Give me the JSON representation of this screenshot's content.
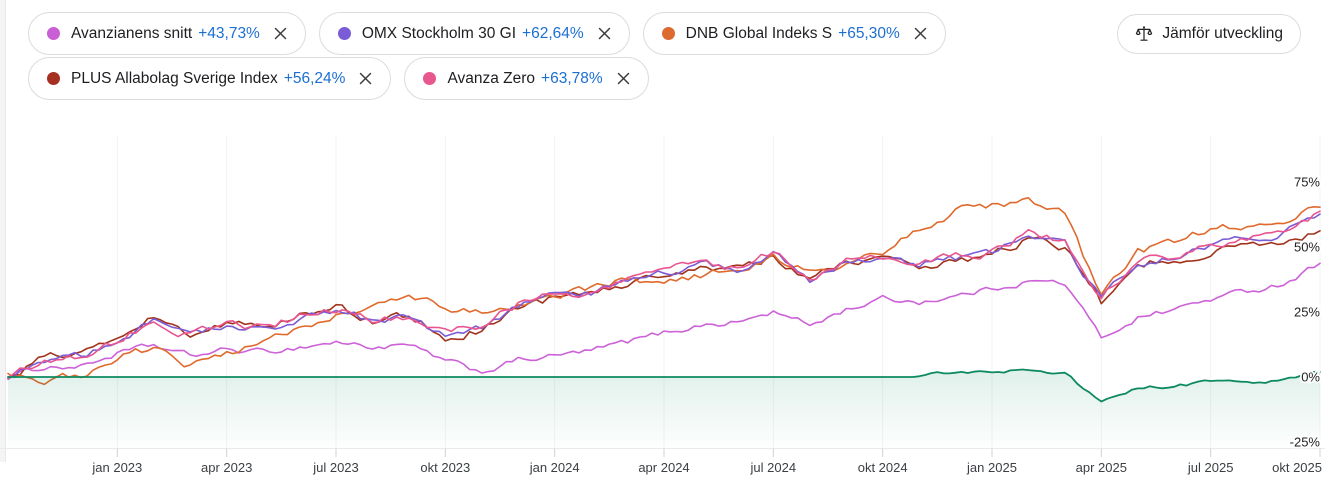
{
  "chips": [
    {
      "label": "Avanzianens snitt",
      "value": "+43,73%",
      "color": "#c95fd4",
      "row": 1
    },
    {
      "label": "OMX Stockholm 30 GI",
      "value": "+62,64%",
      "color": "#7a5cd6",
      "row": 1
    },
    {
      "label": "DNB Global Indeks S",
      "value": "+65,30%",
      "color": "#dd6a2e",
      "row": 1
    },
    {
      "label": "PLUS Allabolag Sverige Index",
      "value": "+56,24%",
      "color": "#a53022",
      "row": 2
    },
    {
      "label": "Avanza Zero",
      "value": "+63,78%",
      "color": "#e8578d",
      "row": 2
    }
  ],
  "compare_button": {
    "label": "Jämför utveckling",
    "icon": "balance-scale-icon"
  },
  "colors": {
    "accent_blue": "#1b6fd2",
    "axis_label": "#3c4043",
    "y_label": "#1f1f1f",
    "main_green": "#0d8a60"
  },
  "chart_data": {
    "type": "line",
    "title": "",
    "x_unit": "month",
    "x_start": "okt 2022",
    "x_end": "okt 2025",
    "x_labels": [
      "jan 2023",
      "apr 2023",
      "jul 2023",
      "okt 2023",
      "jan 2024",
      "apr 2024",
      "jul 2024",
      "okt 2024",
      "jan 2025",
      "apr 2025",
      "jul 2025",
      "okt 2025"
    ],
    "x_label_months": [
      3,
      6,
      9,
      12,
      15,
      18,
      21,
      24,
      27,
      30,
      33,
      36
    ],
    "y_ticks": [
      "75%",
      "50%",
      "25%",
      "0%",
      "-25%"
    ],
    "y_tick_values": [
      75,
      50,
      25,
      0,
      -25
    ],
    "y_range": [
      -30,
      80
    ],
    "grid": "faint-vertical-quarters",
    "legend_position": "chips-top",
    "series": [
      {
        "id": "avanzianens-snitt",
        "name": "Avanzianens snitt",
        "final": "+43,73%",
        "color": "#cd62d8",
        "noise": 0.9,
        "values": [
          0,
          4,
          4,
          9,
          12,
          8,
          10.5,
          9.5,
          11.5,
          13.5,
          11.5,
          12,
          6,
          2,
          6.5,
          8,
          10,
          13.5,
          17,
          20,
          21,
          25,
          20,
          26,
          30,
          29,
          31,
          34,
          37,
          36,
          15,
          23,
          26,
          30,
          33,
          36,
          43.73
        ]
      },
      {
        "id": "plus-allabolag-sverige-index",
        "name": "PLUS Allabolag Sverige Index",
        "final": "+56,24%",
        "color": "#a2331b",
        "noise": 1.25,
        "values": [
          0,
          7.5,
          8.5,
          14.5,
          23,
          17,
          21,
          19.5,
          23.5,
          26.5,
          22,
          23,
          15.5,
          18.5,
          26.5,
          30.5,
          31.5,
          36.5,
          38.5,
          42.5,
          41,
          47,
          37,
          44,
          46,
          43,
          45,
          47,
          53,
          50,
          29,
          43.5,
          45.5,
          48,
          51.5,
          52.5,
          56.24
        ]
      },
      {
        "id": "dnb-global-indeks-s",
        "name": "DNB Global Indeks S",
        "final": "+65,30%",
        "color": "#df6a2c",
        "noise": 1.2,
        "values": [
          0,
          -1,
          1,
          8,
          11,
          4,
          9,
          13,
          20,
          24,
          27,
          30,
          27,
          24,
          27,
          31,
          34,
          38,
          36,
          39,
          42,
          46,
          40,
          43,
          48,
          57,
          64,
          66,
          67,
          63,
          30,
          48,
          52,
          57,
          58,
          60,
          65.3
        ]
      },
      {
        "id": "omx-stockholm-30-gi",
        "name": "OMX Stockholm 30 GI",
        "final": "+62,64%",
        "color": "#7b5cd7",
        "noise": 1.15,
        "values": [
          0,
          6.8,
          7.8,
          13.8,
          21.5,
          15.5,
          19.5,
          18.5,
          22.5,
          25.5,
          21.5,
          22.5,
          16.5,
          19.5,
          27.5,
          31.5,
          32.5,
          37.5,
          39.5,
          43.5,
          41.5,
          47.5,
          37.5,
          44.5,
          46.5,
          43.5,
          45.5,
          47.5,
          54.5,
          51.5,
          29.5,
          44.5,
          46.5,
          49.5,
          53.5,
          55.5,
          62.64
        ]
      },
      {
        "id": "avanza-zero",
        "name": "Avanza Zero",
        "final": "+63,78%",
        "color": "#e85590",
        "noise": 1.2,
        "values": [
          0,
          7,
          8,
          14,
          22,
          16,
          20,
          19,
          23,
          26,
          22,
          23,
          17,
          20,
          28,
          32,
          33,
          38,
          40,
          44,
          42,
          48,
          38,
          45,
          47,
          44,
          46,
          48,
          55,
          52,
          30,
          45,
          47,
          50,
          54,
          56,
          63.78
        ]
      },
      {
        "id": "main-instrument",
        "name": "",
        "final": "",
        "color": "#0d8a60",
        "noise": 0.5,
        "area": true,
        "values": [
          0,
          0,
          0,
          0,
          0,
          0,
          0,
          0,
          0,
          0,
          0,
          0,
          0,
          0,
          0,
          0,
          0,
          0,
          0,
          0,
          0,
          0,
          0,
          0,
          0,
          0,
          2.2,
          2,
          3,
          1.5,
          -10,
          -4,
          -3.5,
          -2,
          -2.5,
          -1.5,
          2
        ]
      }
    ]
  }
}
